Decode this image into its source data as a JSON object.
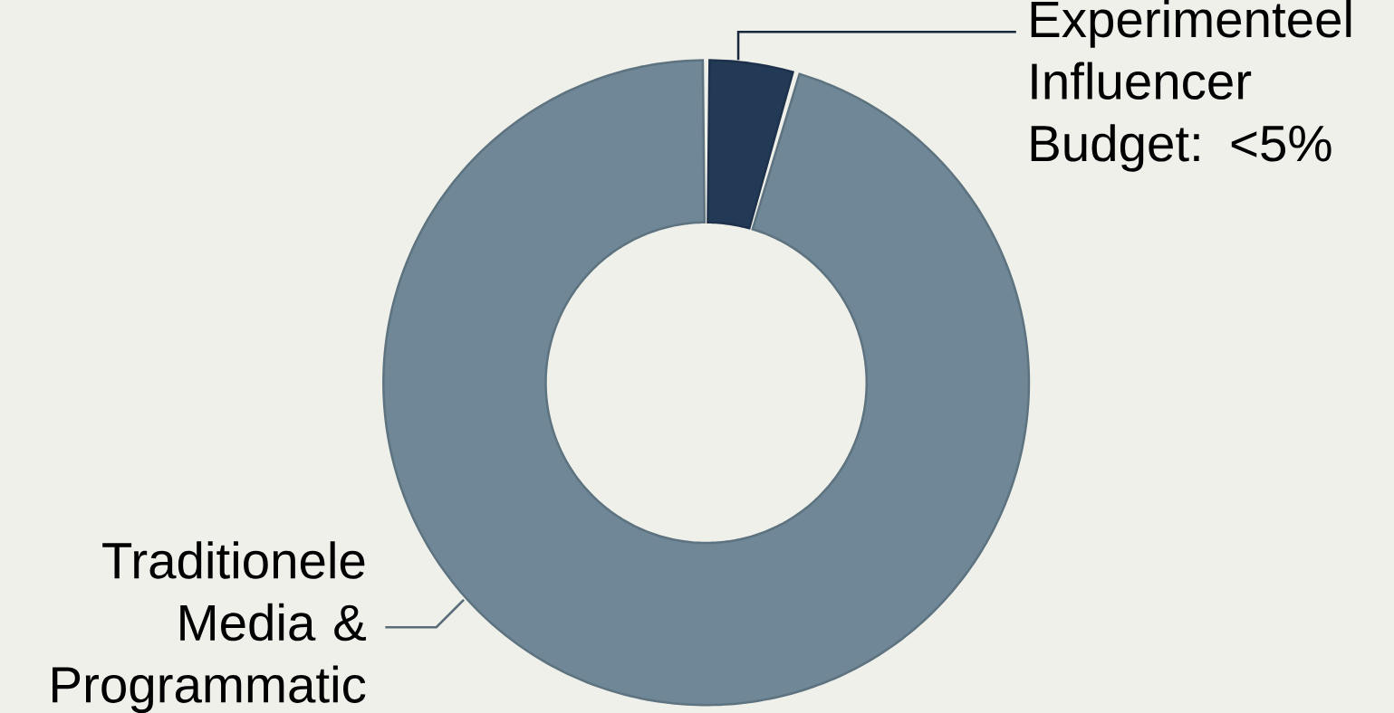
{
  "chart_data": {
    "type": "donut",
    "categories": [
      "Experimenteel Influencer Budget: <5%",
      "Traditionele Media & Programmatic"
    ],
    "values": [
      4.5,
      95.5
    ],
    "colors": [
      "#233a57",
      "#6f8796"
    ]
  }
}
